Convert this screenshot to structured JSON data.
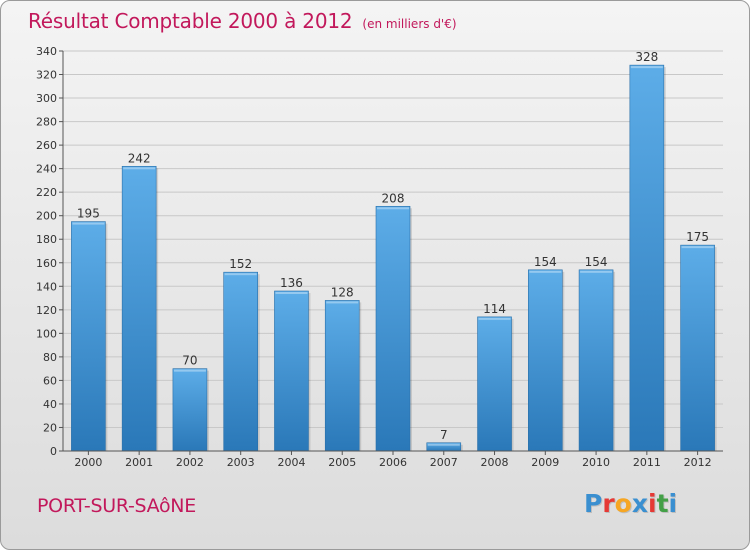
{
  "title": "Résultat Comptable 2000 à 2012",
  "subtitle": "(en milliers d'€)",
  "city": "PORT-SUR-SAôNE",
  "logo": {
    "text": "Proxiti",
    "colors": [
      "#3a8fd0",
      "#e53935",
      "#f6a623",
      "#3a8fd0",
      "#e53935",
      "#43a047",
      "#3a8fd0"
    ]
  },
  "colors": {
    "bar_light": "#5dade8",
    "bar_dark": "#2d7fc1",
    "accent": "#c2185b"
  },
  "chart_data": {
    "type": "bar",
    "categories": [
      "2000",
      "2001",
      "2002",
      "2003",
      "2004",
      "2005",
      "2006",
      "2007",
      "2008",
      "2009",
      "2010",
      "2011",
      "2012"
    ],
    "values": [
      195,
      242,
      70,
      152,
      136,
      128,
      208,
      7,
      114,
      154,
      154,
      328,
      175
    ],
    "ylim": [
      0,
      340
    ],
    "yticks": [
      0,
      20,
      40,
      60,
      80,
      100,
      120,
      140,
      160,
      180,
      200,
      220,
      240,
      260,
      280,
      300,
      320,
      340
    ],
    "grid": true
  }
}
